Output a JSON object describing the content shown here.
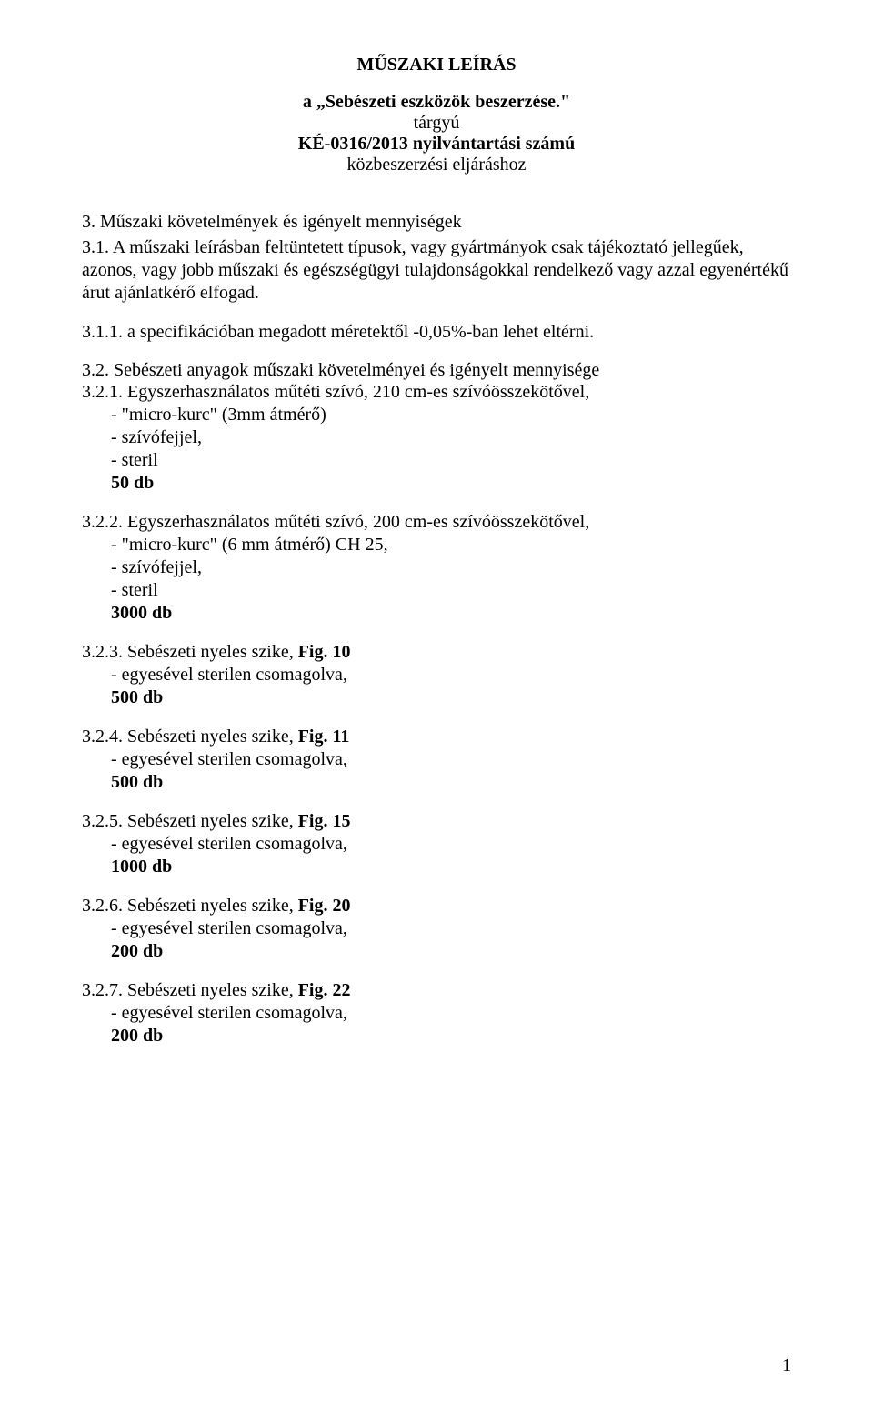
{
  "title": {
    "main": "MŰSZAKI LEÍRÁS",
    "line1_bold": "a „Sebészeti eszközök beszerzése.\"",
    "line1_plain": "tárgyú",
    "line2_bold": "KÉ-0316/2013 nyilvántartási számú",
    "line2_plain": "közbeszerzési eljáráshoz"
  },
  "s3": {
    "heading": "3. Műszaki követelmények és igényelt mennyiségek",
    "s3_1": "3.1. A műszaki leírásban feltüntetett típusok, vagy gyártmányok csak tájékoztató jellegűek, azonos, vagy jobb műszaki és egészségügyi tulajdonságokkal rendelkező vagy azzal egyenértékű árut ajánlatkérő elfogad.",
    "s3_1_1": "3.1.1. a specifikációban megadott méretektől -0,05%-ban lehet eltérni.",
    "s3_2": "3.2. Sebészeti anyagok műszaki követelményei és igényelt mennyisége",
    "items": [
      {
        "num": "3.2.1. Egyszerhasználatos műtéti szívó, 210 cm-es szívóösszekötővel,",
        "bullets": [
          "- \"micro-kurc\" (3mm átmérő)",
          "- szívófejjel,",
          "- steril"
        ],
        "qty": "50 db"
      },
      {
        "num": "3.2.2. Egyszerhasználatos műtéti szívó, 200 cm-es szívóösszekötővel,",
        "bullets": [
          "- \"micro-kurc\" (6 mm átmérő) CH 25,",
          "- szívófejjel,",
          "- steril"
        ],
        "qty": "3000 db"
      },
      {
        "num_pre": "3.2.3. Sebészeti nyeles szike, ",
        "num_bold": "Fig. 10",
        "bullets": [
          "- egyesével sterilen csomagolva,"
        ],
        "qty": "500 db"
      },
      {
        "num_pre": "3.2.4. Sebészeti nyeles szike,  ",
        "num_bold": "Fig. 11",
        "bullets": [
          "- egyesével sterilen csomagolva,"
        ],
        "qty": "500 db"
      },
      {
        "num_pre": "3.2.5. Sebészeti nyeles szike,  ",
        "num_bold": "Fig. 15",
        "bullets": [
          "- egyesével sterilen csomagolva,"
        ],
        "qty": "1000 db"
      },
      {
        "num_pre": "3.2.6.  Sebészeti nyeles szike,  ",
        "num_bold": "Fig. 20",
        "bullets": [
          "- egyesével sterilen csomagolva,"
        ],
        "qty": "200 db"
      },
      {
        "num_pre": "3.2.7. Sebészeti nyeles szike, ",
        "num_bold": "Fig. 22",
        "bullets": [
          "- egyesével sterilen csomagolva,"
        ],
        "qty": "200 db"
      }
    ]
  },
  "page_number": "1"
}
